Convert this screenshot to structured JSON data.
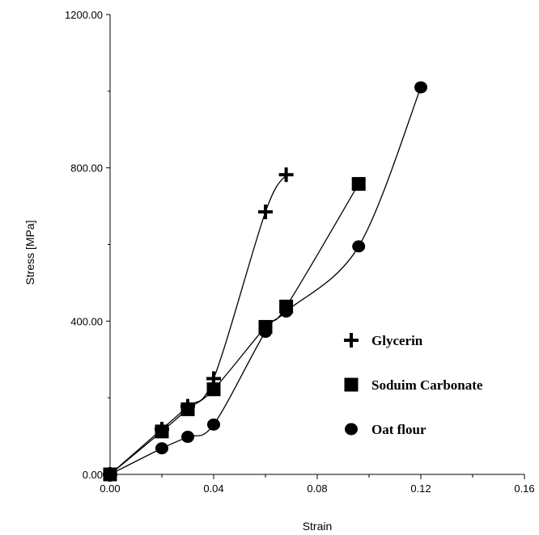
{
  "chart_data": {
    "type": "line",
    "xlabel": "Strain",
    "ylabel": "Stress [MPa]",
    "xlim": [
      0,
      0.16
    ],
    "ylim": [
      0,
      1200
    ],
    "x_ticks": [
      "0.00",
      "0.04",
      "0.08",
      "0.12",
      "0.16"
    ],
    "x_tick_values": [
      0,
      0.04,
      0.08,
      0.12,
      0.16
    ],
    "y_ticks": [
      "0.00",
      "400.00",
      "800.00",
      "1200.00"
    ],
    "y_tick_values": [
      0,
      400,
      800,
      1200
    ],
    "grid": false,
    "legend_position": "right",
    "series": [
      {
        "name": "Glycerin",
        "marker": "plus-icon",
        "x": [
          0.0,
          0.02,
          0.03,
          0.04,
          0.06,
          0.068
        ],
        "y": [
          0,
          118,
          178,
          250,
          685,
          782
        ]
      },
      {
        "name": "Soduim Carbonate",
        "marker": "square-icon",
        "x": [
          0.0,
          0.02,
          0.03,
          0.04,
          0.06,
          0.068,
          0.096
        ],
        "y": [
          0,
          112,
          170,
          222,
          385,
          438,
          758
        ]
      },
      {
        "name": "Oat flour",
        "marker": "circle-icon",
        "x": [
          0.0,
          0.02,
          0.03,
          0.04,
          0.06,
          0.068,
          0.096,
          0.12
        ],
        "y": [
          0,
          68,
          98,
          130,
          372,
          425,
          595,
          1010
        ]
      }
    ]
  }
}
